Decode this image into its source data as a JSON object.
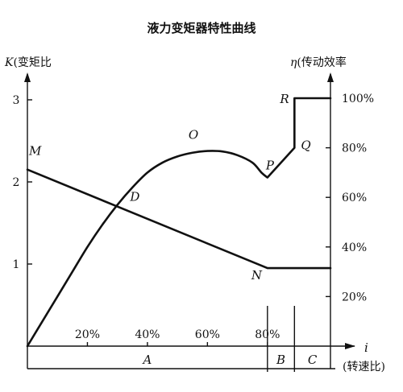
{
  "chart_data": {
    "type": "line",
    "title": "液力变矩器特性曲线",
    "ylabel_left": "K(变矩比",
    "ylabel_right": "η(传动效率",
    "xlabel": "i",
    "xlabel_secondary": "(转速比)",
    "x_ticks": [
      "20%",
      "40%",
      "60%",
      "80%"
    ],
    "x_tick_values": [
      20,
      40,
      60,
      80
    ],
    "y_left_ticks": [
      "1",
      "2",
      "3"
    ],
    "y_left_tick_values": [
      1,
      2,
      3
    ],
    "y_right_ticks": [
      "20%",
      "40%",
      "60%",
      "80%",
      "100%"
    ],
    "y_right_tick_values": [
      20,
      40,
      60,
      80,
      100
    ],
    "xlim": [
      0,
      101
    ],
    "ylim_left": [
      0,
      3
    ],
    "ylim_right": [
      0,
      100
    ],
    "regions": [
      {
        "label": "A",
        "from": 0,
        "to": 80
      },
      {
        "label": "B",
        "from": 80,
        "to": 89
      },
      {
        "label": "C",
        "from": 89,
        "to": 101
      }
    ],
    "series": [
      {
        "key": "K",
        "axis": "left",
        "points": [
          [
            0,
            2.15
          ],
          [
            80,
            0.95
          ],
          [
            89,
            0.95
          ],
          [
            101,
            0.95
          ]
        ]
      },
      {
        "key": "eta",
        "axis": "right",
        "points": [
          [
            0,
            0
          ],
          [
            5,
            10
          ],
          [
            10,
            20
          ],
          [
            15,
            30
          ],
          [
            20,
            40
          ],
          [
            25,
            49
          ],
          [
            30,
            57
          ],
          [
            35,
            64
          ],
          [
            40,
            70
          ],
          [
            45,
            74
          ],
          [
            50,
            76.5
          ],
          [
            55,
            78
          ],
          [
            60,
            78.7
          ],
          [
            65,
            78.5
          ],
          [
            70,
            77
          ],
          [
            75,
            74
          ],
          [
            78,
            70
          ],
          [
            80,
            68
          ],
          [
            89,
            80
          ],
          [
            89,
            100
          ],
          [
            101,
            100
          ]
        ]
      }
    ],
    "point_labels": [
      {
        "label": "M",
        "x": 0,
        "y": 2.15,
        "axis": "left"
      },
      {
        "label": "D",
        "x": 31,
        "y": 1.63,
        "axis": "left"
      },
      {
        "label": "O",
        "x": 58,
        "y": 79,
        "axis": "right"
      },
      {
        "label": "P",
        "x": 80,
        "y": 68,
        "axis": "right"
      },
      {
        "label": "Q",
        "x": 89,
        "y": 80,
        "axis": "right"
      },
      {
        "label": "R",
        "x": 89,
        "y": 100,
        "axis": "right"
      },
      {
        "label": "N",
        "x": 80,
        "y": 0.95,
        "axis": "left"
      }
    ]
  }
}
